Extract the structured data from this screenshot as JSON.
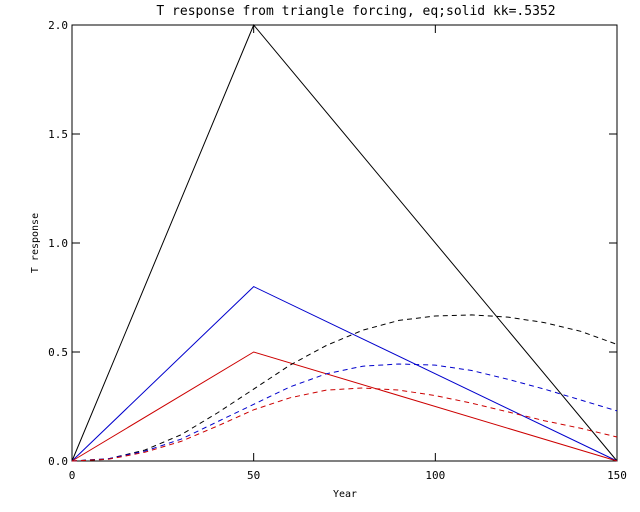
{
  "chart_data": {
    "type": "line",
    "title": "T response from triangle forcing, eq;solid kk=.5352",
    "xlabel": "Year",
    "ylabel": "T response",
    "xlim": [
      0,
      150
    ],
    "ylim": [
      0,
      2.0
    ],
    "x_ticks": [
      0,
      50,
      100,
      150
    ],
    "x_tick_labels": [
      "0",
      "50",
      "100",
      "150"
    ],
    "y_ticks": [
      0,
      0.5,
      1.0,
      1.5,
      2.0
    ],
    "y_tick_labels": [
      "0.0",
      "0.5",
      "1.0",
      "1.5",
      "2.0"
    ],
    "grid": false,
    "legend": "none",
    "series": [
      {
        "color": "#000000",
        "style": "solid",
        "x": [
          0,
          50,
          150
        ],
        "y": [
          0,
          2.0,
          0
        ]
      },
      {
        "color": "#0000cc",
        "style": "solid",
        "x": [
          0,
          50,
          150
        ],
        "y": [
          0,
          0.8,
          0
        ]
      },
      {
        "color": "#cc0000",
        "style": "solid",
        "x": [
          0,
          50,
          150
        ],
        "y": [
          0,
          0.5,
          0
        ]
      },
      {
        "color": "#000000",
        "style": "dashed",
        "x": [
          0,
          10,
          20,
          30,
          40,
          50,
          60,
          70,
          80,
          90,
          100,
          110,
          120,
          130,
          140,
          150
        ],
        "y": [
          0,
          0.01,
          0.05,
          0.12,
          0.22,
          0.33,
          0.44,
          0.53,
          0.6,
          0.645,
          0.665,
          0.67,
          0.66,
          0.635,
          0.595,
          0.535
        ]
      },
      {
        "color": "#0000cc",
        "style": "dashed",
        "x": [
          0,
          10,
          20,
          30,
          40,
          50,
          60,
          70,
          80,
          90,
          100,
          110,
          120,
          130,
          140,
          150
        ],
        "y": [
          0,
          0.01,
          0.045,
          0.1,
          0.18,
          0.26,
          0.34,
          0.4,
          0.435,
          0.445,
          0.44,
          0.415,
          0.375,
          0.33,
          0.28,
          0.23
        ]
      },
      {
        "color": "#cc0000",
        "style": "dashed",
        "x": [
          0,
          10,
          20,
          30,
          40,
          50,
          60,
          70,
          80,
          90,
          100,
          110,
          120,
          130,
          140,
          150
        ],
        "y": [
          0,
          0.008,
          0.04,
          0.09,
          0.16,
          0.235,
          0.29,
          0.325,
          0.335,
          0.325,
          0.3,
          0.265,
          0.225,
          0.185,
          0.15,
          0.11
        ]
      }
    ]
  }
}
